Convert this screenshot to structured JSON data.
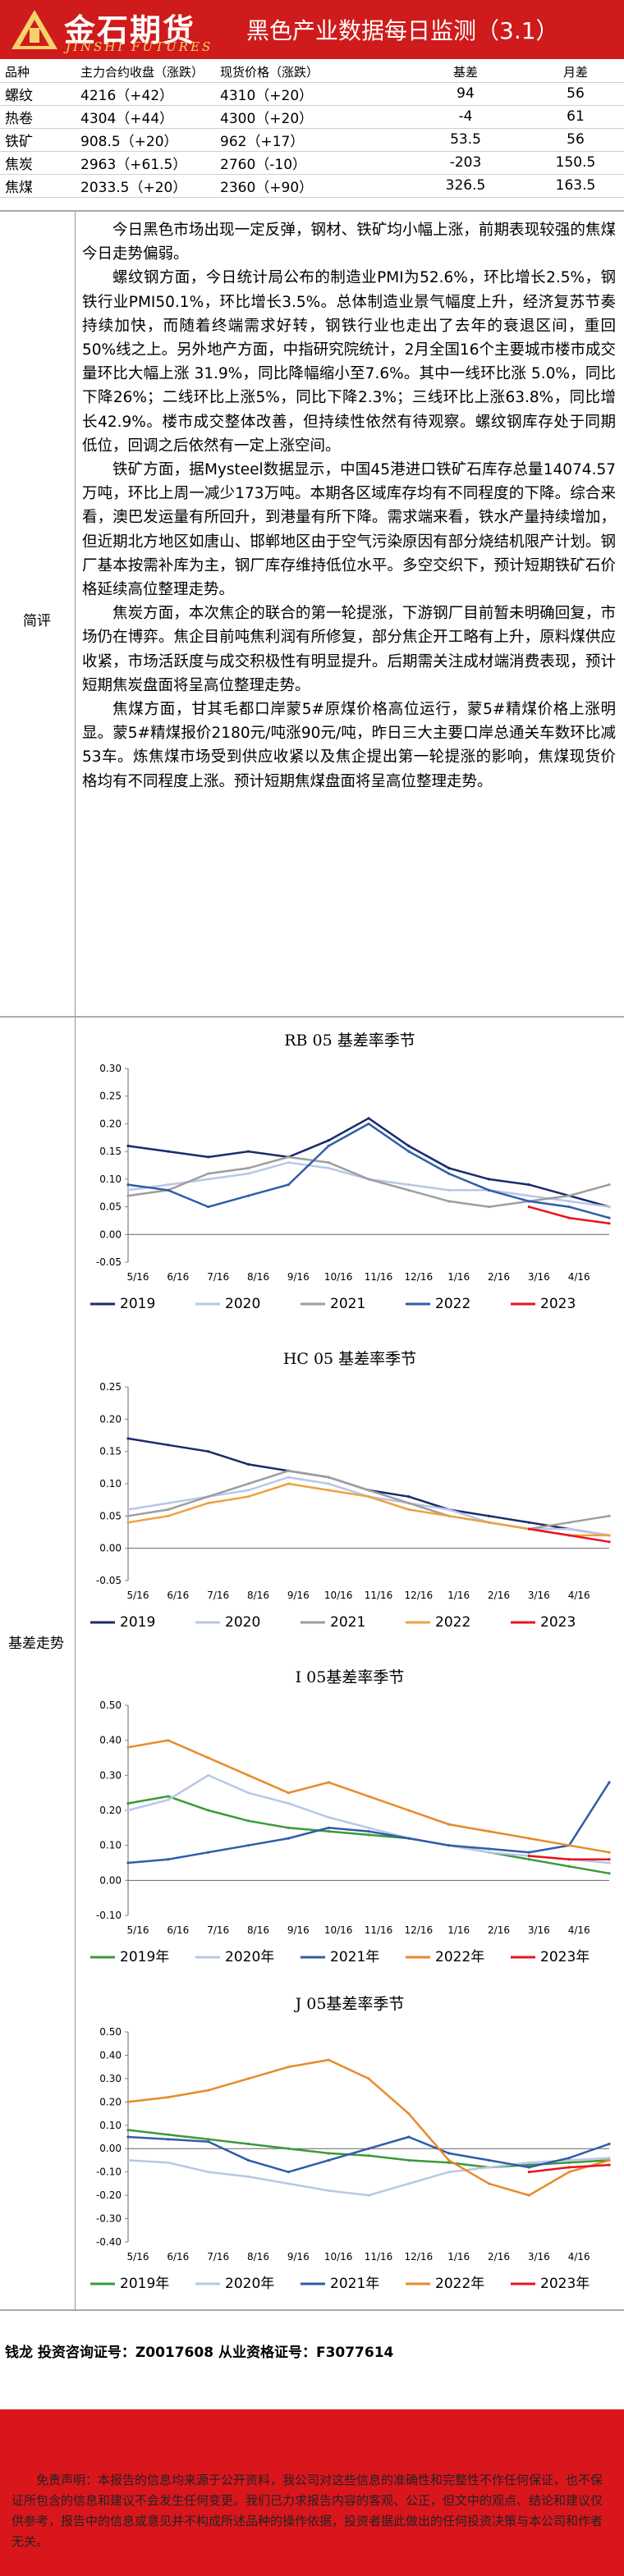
{
  "header": {
    "logo_cn": "金石期货",
    "logo_en": "JINSHI FUTURES",
    "title": "黑色产业数据每日监测（3.1）"
  },
  "table": {
    "headers": [
      "品种",
      "主力合约收盘（涨跌）",
      "现货价格（涨跌）",
      "基差",
      "月差"
    ],
    "rows": [
      {
        "name": "螺纹",
        "futures": "4216（+42）",
        "spot": "4310（+20）",
        "basis": "94",
        "spread": "56"
      },
      {
        "name": "热卷",
        "futures": "4304（+44）",
        "spot": "4300（+20）",
        "basis": "-4",
        "spread": "61"
      },
      {
        "name": "铁矿",
        "futures": "908.5（+20）",
        "spot": "962（+17）",
        "basis": "53.5",
        "spread": "56"
      },
      {
        "name": "焦炭",
        "futures": "2963（+61.5）",
        "spot": "2760（-10）",
        "basis": "-203",
        "spread": "150.5"
      },
      {
        "name": "焦煤",
        "futures": "2033.5（+20）",
        "spot": "2360（+90）",
        "basis": "326.5",
        "spread": "163.5"
      }
    ]
  },
  "commentary": {
    "label": "简评",
    "paragraphs": [
      "今日黑色市场出现一定反弹，钢材、铁矿均小幅上涨，前期表现较强的焦煤今日走势偏弱。",
      "螺纹钢方面，今日统计局公布的制造业PMI为52.6%，环比增长2.5%，钢铁行业PMI50.1%，环比增长3.5%。总体制造业景气幅度上升，经济复苏节奏持续加快，而随着终端需求好转，钢铁行业也走出了去年的衰退区间，重回50%线之上。另外地产方面，中指研究院统计，2月全国16个主要城市楼市成交量环比大幅上涨 31.9%，同比降幅缩小至7.6%。其中一线环比涨 5.0%，同比下降26%；二线环比上涨5%，同比下降2.3%；三线环比上涨63.8%，同比增长42.9%。楼市成交整体改善，但持续性依然有待观察。螺纹钢库存处于同期低位，回调之后依然有一定上涨空间。",
      "铁矿方面，据Mysteel数据显示，中国45港进口铁矿石库存总量14074.57万吨，环比上周一减少173万吨。本期各区域库存均有不同程度的下降。综合来看，澳巴发运量有所回升，到港量有所下降。需求端来看，铁水产量持续增加，但近期北方地区如唐山、邯郸地区由于空气污染原因有部分烧结机限产计划。钢厂基本按需补库为主，钢厂库存维持低位水平。多空交织下，预计短期铁矿石价格延续高位整理走势。",
      "焦炭方面，本次焦企的联合的第一轮提涨，下游钢厂目前暂未明确回复，市场仍在博弈。焦企目前吨焦利润有所修复，部分焦企开工略有上升，原料煤供应收紧，市场活跃度与成交积极性有明显提升。后期需关注成材端消费表现，预计短期焦炭盘面将呈高位整理走势。",
      "焦煤方面，甘其毛都口岸蒙5#原煤价格高位运行，蒙5#精煤价格上涨明显。蒙5#精煤报价2180元/吨涨90元/吨，昨日三大主要口岸总通关车数环比减53车。炼焦煤市场受到供应收紧以及焦企提出第一轮提涨的影响，焦煤现货价格均有不同程度上涨。预计短期焦煤盘面将呈高位整理走势。"
    ]
  },
  "chart_section": {
    "label": "基差走势"
  },
  "chart_data": [
    {
      "id": "rb",
      "type": "line",
      "title": "RB 05 基差率季节",
      "x_ticks": [
        "5/16",
        "6/16",
        "7/16",
        "8/16",
        "9/16",
        "10/16",
        "11/16",
        "12/16",
        "1/16",
        "2/16",
        "3/16",
        "4/16"
      ],
      "ylim": [
        -0.05,
        0.3
      ],
      "y_ticks": [
        -0.05,
        0.0,
        0.05,
        0.1,
        0.15,
        0.2,
        0.25,
        0.3
      ],
      "series": [
        {
          "name": "2019",
          "color": "#1a2a6c",
          "values": [
            0.16,
            0.15,
            0.14,
            0.15,
            0.14,
            0.17,
            0.21,
            0.16,
            0.12,
            0.1,
            0.09,
            0.07,
            0.05
          ]
        },
        {
          "name": "2020",
          "color": "#b8c7e8",
          "values": [
            0.08,
            0.09,
            0.1,
            0.11,
            0.13,
            0.12,
            0.1,
            0.09,
            0.08,
            0.08,
            0.07,
            0.06,
            0.05
          ]
        },
        {
          "name": "2021",
          "color": "#9e9e9e",
          "values": [
            0.07,
            0.08,
            0.11,
            0.12,
            0.14,
            0.13,
            0.1,
            0.08,
            0.06,
            0.05,
            0.06,
            0.07,
            0.09
          ]
        },
        {
          "name": "2022",
          "color": "#2f5ea8",
          "values": [
            0.09,
            0.08,
            0.05,
            0.07,
            0.09,
            0.16,
            0.2,
            0.15,
            0.11,
            0.08,
            0.06,
            0.05,
            0.03
          ]
        },
        {
          "name": "2023",
          "color": "#e8141e",
          "values": [
            null,
            null,
            null,
            null,
            null,
            null,
            null,
            null,
            null,
            null,
            0.05,
            0.03,
            0.02
          ]
        }
      ]
    },
    {
      "id": "hc",
      "type": "line",
      "title": "HC 05 基差率季节",
      "x_ticks": [
        "5/16",
        "6/16",
        "7/16",
        "8/16",
        "9/16",
        "10/16",
        "11/16",
        "12/16",
        "1/16",
        "2/16",
        "3/16",
        "4/16"
      ],
      "ylim": [
        -0.05,
        0.25
      ],
      "y_ticks": [
        -0.05,
        0.0,
        0.05,
        0.1,
        0.15,
        0.2,
        0.25
      ],
      "series": [
        {
          "name": "2019",
          "color": "#1a2a6c",
          "values": [
            0.17,
            0.16,
            0.15,
            0.13,
            0.12,
            0.11,
            0.09,
            0.08,
            0.06,
            0.05,
            0.04,
            0.03,
            0.02
          ]
        },
        {
          "name": "2020",
          "color": "#b8c7e8",
          "values": [
            0.06,
            0.07,
            0.08,
            0.09,
            0.11,
            0.1,
            0.08,
            0.07,
            0.06,
            0.04,
            0.03,
            0.03,
            0.02
          ]
        },
        {
          "name": "2021",
          "color": "#9e9e9e",
          "values": [
            0.05,
            0.06,
            0.08,
            0.1,
            0.12,
            0.11,
            0.09,
            0.07,
            0.05,
            0.04,
            0.03,
            0.04,
            0.05
          ]
        },
        {
          "name": "2022",
          "color": "#f0a040",
          "values": [
            0.04,
            0.05,
            0.07,
            0.08,
            0.1,
            0.09,
            0.08,
            0.06,
            0.05,
            0.04,
            0.03,
            0.02,
            0.02
          ]
        },
        {
          "name": "2023",
          "color": "#e8141e",
          "values": [
            null,
            null,
            null,
            null,
            null,
            null,
            null,
            null,
            null,
            null,
            0.03,
            0.02,
            0.01
          ]
        }
      ]
    },
    {
      "id": "i",
      "type": "line",
      "title": "I 05基差率季节",
      "x_ticks": [
        "5/16",
        "6/16",
        "7/16",
        "8/16",
        "9/16",
        "10/16",
        "11/16",
        "12/16",
        "1/16",
        "2/16",
        "3/16",
        "4/16"
      ],
      "ylim": [
        -0.1,
        0.5
      ],
      "y_ticks": [
        -0.1,
        0.0,
        0.1,
        0.2,
        0.3,
        0.4,
        0.5
      ],
      "series": [
        {
          "name": "2019年",
          "color": "#3a9a3a",
          "values": [
            0.22,
            0.24,
            0.2,
            0.17,
            0.15,
            0.14,
            0.13,
            0.12,
            0.1,
            0.08,
            0.06,
            0.04,
            0.02
          ]
        },
        {
          "name": "2020年",
          "color": "#b8c7e8",
          "values": [
            0.2,
            0.23,
            0.3,
            0.25,
            0.22,
            0.18,
            0.15,
            0.12,
            0.1,
            0.08,
            0.07,
            0.06,
            0.05
          ]
        },
        {
          "name": "2021年",
          "color": "#2f5ea8",
          "values": [
            0.05,
            0.06,
            0.08,
            0.1,
            0.12,
            0.15,
            0.14,
            0.12,
            0.1,
            0.09,
            0.08,
            0.1,
            0.28
          ]
        },
        {
          "name": "2022年",
          "color": "#e88a2a",
          "values": [
            0.38,
            0.4,
            0.35,
            0.3,
            0.25,
            0.28,
            0.24,
            0.2,
            0.16,
            0.14,
            0.12,
            0.1,
            0.08
          ]
        },
        {
          "name": "2023年",
          "color": "#e8141e",
          "values": [
            null,
            null,
            null,
            null,
            null,
            null,
            null,
            null,
            null,
            null,
            0.07,
            0.06,
            0.06
          ]
        }
      ]
    },
    {
      "id": "j",
      "type": "line",
      "title": "J 05基差率季节",
      "x_ticks": [
        "5/16",
        "6/16",
        "7/16",
        "8/16",
        "9/16",
        "10/16",
        "11/16",
        "12/16",
        "1/16",
        "2/16",
        "3/16",
        "4/16"
      ],
      "ylim": [
        -0.4,
        0.5
      ],
      "y_ticks": [
        -0.4,
        -0.3,
        -0.2,
        -0.1,
        0.0,
        0.1,
        0.2,
        0.3,
        0.4,
        0.5
      ],
      "series": [
        {
          "name": "2019年",
          "color": "#3a9a3a",
          "values": [
            0.08,
            0.06,
            0.04,
            0.02,
            0.0,
            -0.02,
            -0.03,
            -0.05,
            -0.06,
            -0.08,
            -0.07,
            -0.06,
            -0.05
          ]
        },
        {
          "name": "2020年",
          "color": "#b8c7e8",
          "values": [
            -0.05,
            -0.06,
            -0.1,
            -0.12,
            -0.15,
            -0.18,
            -0.2,
            -0.15,
            -0.1,
            -0.08,
            -0.06,
            -0.05,
            -0.04
          ]
        },
        {
          "name": "2021年",
          "color": "#2f5ea8",
          "values": [
            0.05,
            0.04,
            0.03,
            -0.05,
            -0.1,
            -0.05,
            0.0,
            0.05,
            -0.02,
            -0.05,
            -0.08,
            -0.04,
            0.02
          ]
        },
        {
          "name": "2022年",
          "color": "#e88a2a",
          "values": [
            0.2,
            0.22,
            0.25,
            0.3,
            0.35,
            0.38,
            0.3,
            0.15,
            -0.05,
            -0.15,
            -0.2,
            -0.1,
            -0.05
          ]
        },
        {
          "name": "2023年",
          "color": "#e8141e",
          "values": [
            null,
            null,
            null,
            null,
            null,
            null,
            null,
            null,
            null,
            null,
            -0.1,
            -0.08,
            -0.07
          ]
        }
      ]
    }
  ],
  "footer": {
    "cert_line": "钱龙  投资咨询证号：Z0017608   从业资格证号：F3077614",
    "disclaimer": "免责声明：本报告的信息均来源于公开资料，我公司对这些信息的准确性和完整性不作任何保证，也不保证所包含的信息和建议不会发生任何变更。我们已力求报告内容的客观、公正，但文中的观点、结论和建议仅供参考，报告中的信息或意见并不构成所述品种的操作依据，投资者据此做出的任何投资决策与本公司和作者无关。"
  }
}
